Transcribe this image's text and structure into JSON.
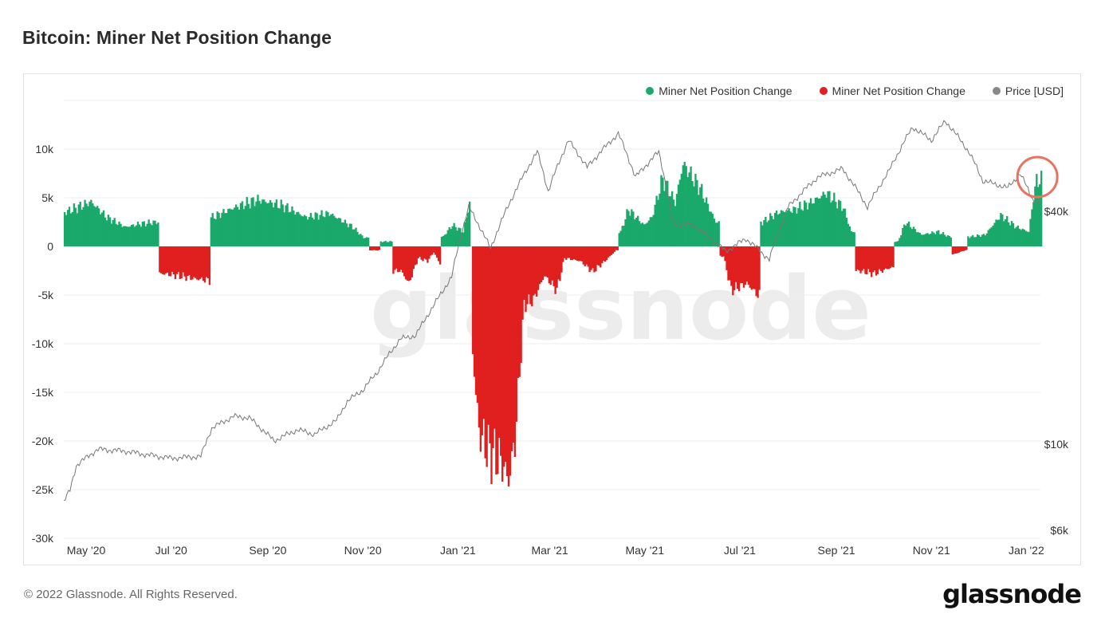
{
  "title": "Bitcoin: Miner Net Position Change",
  "footer": {
    "copyright": "© 2022 Glassnode. All Rights Reserved.",
    "logo": "glassnode"
  },
  "watermark": "glassnode",
  "legend": [
    {
      "label": "Miner Net Position Change",
      "color": "#1aa96a"
    },
    {
      "label": "Miner Net Position Change",
      "color": "#e01f1f"
    },
    {
      "label": "Price [USD]",
      "color": "#888888"
    }
  ],
  "colors": {
    "positive": "#1aa96a",
    "negative": "#e01f1f",
    "price": "#777777",
    "highlight": "#e8735f",
    "grid": "#eeeeee"
  },
  "chart_data": {
    "type": "bar",
    "title": "Bitcoin: Miner Net Position Change",
    "x_range": [
      "2020-04-23",
      "2022-01-10"
    ],
    "x_ticks": [
      "May '20",
      "Jul '20",
      "Sep '20",
      "Nov '20",
      "Jan '21",
      "Mar '21",
      "May '21",
      "Jul '21",
      "Sep '21",
      "Nov '21",
      "Jan '22"
    ],
    "y_left": {
      "ticks": [
        10000,
        5000,
        0,
        -5000,
        -10000,
        -15000,
        -20000,
        -25000,
        -30000
      ],
      "tick_labels": [
        "10k",
        "5k",
        "0",
        "-5k",
        "-10k",
        "-15k",
        "-20k",
        "-25k",
        "-30k"
      ],
      "range": [
        -30000,
        15000
      ]
    },
    "y_right": {
      "scale": "log",
      "tick_labels": [
        "$40k",
        "$10k",
        "$6k"
      ],
      "ticks": [
        40000,
        10000,
        6000
      ],
      "range": [
        6000,
        85000
      ]
    },
    "net_position_keyframes": [
      [
        "2020-04-23",
        3500
      ],
      [
        "2020-05-01",
        4000
      ],
      [
        "2020-05-10",
        4600
      ],
      [
        "2020-05-20",
        3000
      ],
      [
        "2020-06-01",
        2000
      ],
      [
        "2020-06-10",
        2300
      ],
      [
        "2020-06-20",
        2500
      ],
      [
        "2020-06-25",
        -2800
      ],
      [
        "2020-07-05",
        -3000
      ],
      [
        "2020-07-15",
        -3300
      ],
      [
        "2020-07-25",
        -3500
      ],
      [
        "2020-07-27",
        3000
      ],
      [
        "2020-08-10",
        4000
      ],
      [
        "2020-08-25",
        4800
      ],
      [
        "2020-09-10",
        4200
      ],
      [
        "2020-09-25",
        3000
      ],
      [
        "2020-10-10",
        3400
      ],
      [
        "2020-10-25",
        2000
      ],
      [
        "2020-11-01",
        900
      ],
      [
        "2020-11-08",
        -400
      ],
      [
        "2020-11-15",
        500
      ],
      [
        "2020-11-25",
        -2500
      ],
      [
        "2020-11-30",
        -3800
      ],
      [
        "2020-12-06",
        -1200
      ],
      [
        "2020-12-12",
        -1500
      ],
      [
        "2020-12-16",
        -600
      ],
      [
        "2020-12-20",
        -1800
      ],
      [
        "2020-12-22",
        1000
      ],
      [
        "2020-12-28",
        2200
      ],
      [
        "2021-01-04",
        1500
      ],
      [
        "2021-01-08",
        4500
      ],
      [
        "2021-01-09",
        0
      ],
      [
        "2021-01-10",
        -11000
      ],
      [
        "2021-01-14",
        -19000
      ],
      [
        "2021-01-20",
        -21000
      ],
      [
        "2021-01-28",
        -22000
      ],
      [
        "2021-02-02",
        -24000
      ],
      [
        "2021-02-06",
        -20000
      ],
      [
        "2021-02-12",
        -6000
      ],
      [
        "2021-02-18",
        -5500
      ],
      [
        "2021-02-25",
        -3000
      ],
      [
        "2021-03-05",
        -4500
      ],
      [
        "2021-03-10",
        -1200
      ],
      [
        "2021-03-20",
        -1500
      ],
      [
        "2021-03-28",
        -2600
      ],
      [
        "2021-04-05",
        -1500
      ],
      [
        "2021-04-12",
        -400
      ],
      [
        "2021-04-15",
        1500
      ],
      [
        "2021-04-20",
        3800
      ],
      [
        "2021-04-30",
        2200
      ],
      [
        "2021-05-05",
        3000
      ],
      [
        "2021-05-12",
        7000
      ],
      [
        "2021-05-20",
        4500
      ],
      [
        "2021-05-25",
        8500
      ],
      [
        "2021-06-05",
        6000
      ],
      [
        "2021-06-15",
        2500
      ],
      [
        "2021-06-20",
        -1000
      ],
      [
        "2021-06-25",
        -4500
      ],
      [
        "2021-07-05",
        -3800
      ],
      [
        "2021-07-12",
        -5000
      ],
      [
        "2021-07-15",
        2500
      ],
      [
        "2021-07-25",
        3500
      ],
      [
        "2021-08-05",
        3800
      ],
      [
        "2021-08-15",
        4500
      ],
      [
        "2021-08-25",
        5500
      ],
      [
        "2021-09-05",
        4000
      ],
      [
        "2021-09-10",
        1500
      ],
      [
        "2021-09-15",
        -2500
      ],
      [
        "2021-09-25",
        -2800
      ],
      [
        "2021-10-05",
        -2200
      ],
      [
        "2021-10-10",
        500
      ],
      [
        "2021-10-15",
        2500
      ],
      [
        "2021-10-25",
        1200
      ],
      [
        "2021-11-05",
        1500
      ],
      [
        "2021-11-12",
        1000
      ],
      [
        "2021-11-15",
        -800
      ],
      [
        "2021-11-22",
        -400
      ],
      [
        "2021-11-26",
        1000
      ],
      [
        "2021-12-05",
        1200
      ],
      [
        "2021-12-15",
        3200
      ],
      [
        "2021-12-25",
        2000
      ],
      [
        "2022-01-02",
        1500
      ],
      [
        "2022-01-05",
        5000
      ],
      [
        "2022-01-07",
        6800
      ]
    ],
    "price_series": [
      [
        "2020-04-23",
        7100
      ],
      [
        "2020-04-27",
        7600
      ],
      [
        "2020-05-01",
        8800
      ],
      [
        "2020-05-10",
        9400
      ],
      [
        "2020-05-15",
        9700
      ],
      [
        "2020-06-01",
        9600
      ],
      [
        "2020-06-15",
        9400
      ],
      [
        "2020-07-01",
        9200
      ],
      [
        "2020-07-20",
        9300
      ],
      [
        "2020-07-27",
        11000
      ],
      [
        "2020-08-10",
        11800
      ],
      [
        "2020-08-20",
        11700
      ],
      [
        "2020-09-05",
        10200
      ],
      [
        "2020-09-20",
        10900
      ],
      [
        "2020-10-01",
        10600
      ],
      [
        "2020-10-15",
        11500
      ],
      [
        "2020-10-22",
        12900
      ],
      [
        "2020-11-01",
        13800
      ],
      [
        "2020-11-10",
        15300
      ],
      [
        "2020-11-25",
        18700
      ],
      [
        "2020-12-05",
        19100
      ],
      [
        "2020-12-17",
        23000
      ],
      [
        "2020-12-28",
        27000
      ],
      [
        "2021-01-08",
        41000
      ],
      [
        "2021-01-22",
        32000
      ],
      [
        "2021-02-08",
        46000
      ],
      [
        "2021-02-21",
        57000
      ],
      [
        "2021-02-28",
        45000
      ],
      [
        "2021-03-13",
        61000
      ],
      [
        "2021-03-25",
        52000
      ],
      [
        "2021-04-14",
        63500
      ],
      [
        "2021-04-25",
        49000
      ],
      [
        "2021-05-10",
        57000
      ],
      [
        "2021-05-19",
        37000
      ],
      [
        "2021-06-01",
        37000
      ],
      [
        "2021-06-22",
        31500
      ],
      [
        "2021-07-05",
        34000
      ],
      [
        "2021-07-20",
        30000
      ],
      [
        "2021-08-01",
        41000
      ],
      [
        "2021-08-20",
        49000
      ],
      [
        "2021-09-05",
        51500
      ],
      [
        "2021-09-21",
        41000
      ],
      [
        "2021-10-05",
        51000
      ],
      [
        "2021-10-20",
        66000
      ],
      [
        "2021-11-01",
        61000
      ],
      [
        "2021-11-10",
        68500
      ],
      [
        "2021-11-25",
        57000
      ],
      [
        "2021-12-04",
        48000
      ],
      [
        "2021-12-20",
        46000
      ],
      [
        "2021-12-28",
        50000
      ],
      [
        "2022-01-05",
        43000
      ],
      [
        "2022-01-10",
        41800
      ]
    ],
    "highlight_date": "2022-01-07"
  }
}
